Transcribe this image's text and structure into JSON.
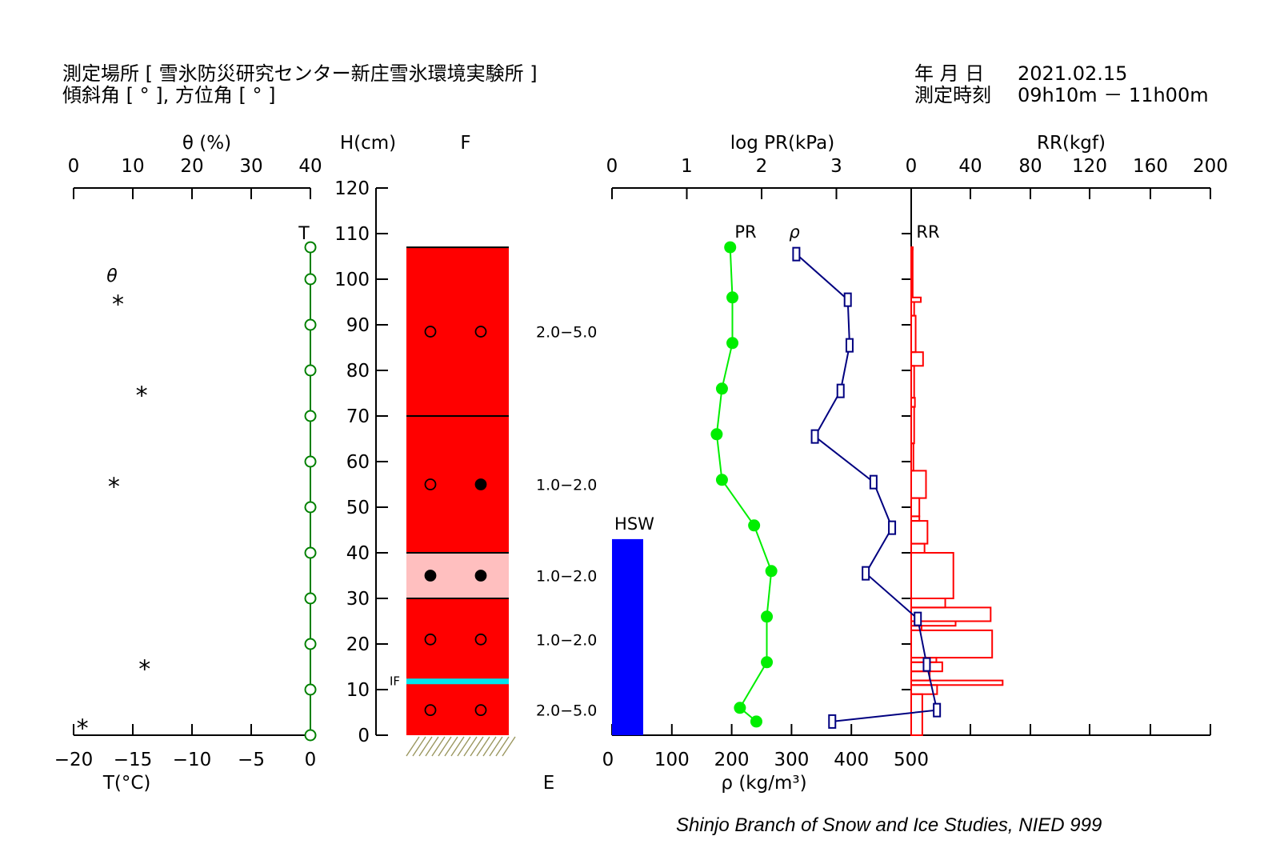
{
  "header": {
    "site_label": "測定場所 [ 雪氷防災研究センター新庄雪氷環境実験所 ]",
    "angle_label": "傾斜角 [ ° ], 方位角 [ ° ]",
    "date_label": "年 月 日",
    "date_value": "2021.02.15",
    "time_label": "測定時刻",
    "time_value": "09h10m － 11h00m"
  },
  "footer": {
    "credit": "Shinjo Branch of Snow and Ice Studies, NIED 999"
  },
  "chart_data": [
    {
      "id": "temperature_moisture",
      "type": "scatter",
      "title": "",
      "top_axis": {
        "label": "θ (%)",
        "ticks": [
          0,
          10,
          20,
          30,
          40
        ],
        "range": [
          0,
          40
        ]
      },
      "bottom_axis": {
        "label": "T(°C)",
        "ticks": [
          -20,
          -15,
          -10,
          -5,
          0
        ],
        "range": [
          -20,
          0
        ]
      },
      "y_axis": {
        "label": "H(cm)",
        "ticks": [
          0,
          10,
          20,
          30,
          40,
          50,
          60,
          70,
          80,
          90,
          100,
          110,
          120
        ],
        "range": [
          0,
          120
        ]
      },
      "series": [
        {
          "name": "T",
          "color": "#008000",
          "marker": "open-circle",
          "points": [
            [
              0,
              107
            ],
            [
              0,
              100
            ],
            [
              0,
              90
            ],
            [
              0,
              80
            ],
            [
              0,
              70
            ],
            [
              0,
              60
            ],
            [
              0,
              50
            ],
            [
              0,
              40
            ],
            [
              0,
              30
            ],
            [
              0,
              20
            ],
            [
              0,
              10
            ],
            [
              0,
              0
            ]
          ]
        },
        {
          "name": "θ",
          "color": "#000000",
          "marker": "asterisk",
          "points": [
            [
              7.5,
              95
            ],
            [
              11.5,
              75
            ],
            [
              6.8,
              55
            ],
            [
              12,
              15
            ],
            [
              1.5,
              2
            ]
          ]
        }
      ]
    },
    {
      "id": "snow_layers",
      "type": "table",
      "column_label": "F",
      "bottom_label": "E",
      "snow_top_cm": 107,
      "layers": [
        {
          "bottom": 70,
          "top": 107,
          "color": "#ff0000",
          "marks": [
            "open",
            "open"
          ],
          "mark_h": 88.5,
          "grain": "2.0−5.0",
          "grain_h": 88.5
        },
        {
          "bottom": 40,
          "top": 70,
          "color": "#ff0000",
          "marks": [
            "open",
            "filled"
          ],
          "mark_h": 55,
          "grain": "1.0−2.0",
          "grain_h": 55
        },
        {
          "bottom": 30,
          "top": 40,
          "color": "#ffbfbf",
          "marks": [
            "filled",
            "filled"
          ],
          "mark_h": 35,
          "grain": "1.0−2.0",
          "grain_h": 35
        },
        {
          "bottom": 12,
          "top": 30,
          "color": "#ff0000",
          "marks": [
            "open",
            "open"
          ],
          "mark_h": 21,
          "grain": "1.0−2.0",
          "grain_h": 21
        },
        {
          "bottom": 0,
          "top": 11.5,
          "color": "#ff0000",
          "marks": [
            "open",
            "open"
          ],
          "mark_h": 5.5,
          "grain": "2.0−5.0",
          "grain_h": 5.5
        }
      ],
      "ice_films": [
        {
          "label": "IF",
          "h": 11.8,
          "color": "#00e5ee"
        }
      ]
    },
    {
      "id": "hardness_density",
      "type": "line",
      "top_axis_pr": {
        "label": "log PR(kPa)",
        "ticks": [
          0,
          1,
          2,
          3
        ],
        "range": [
          0,
          4
        ]
      },
      "bottom_axis_rho": {
        "label": "ρ (kg/m³)",
        "ticks": [
          0,
          100,
          200,
          300,
          400,
          500
        ],
        "range": [
          0,
          500
        ]
      },
      "top_axis_rr": {
        "label": "RR(kgf)",
        "ticks": [
          0,
          40,
          80,
          120,
          160,
          200
        ],
        "range": [
          0,
          200
        ]
      },
      "hsw": {
        "label": "HSW",
        "height_cm": 43,
        "color": "#0000ff"
      },
      "series": [
        {
          "name": "PR",
          "color": "#00ee00",
          "marker": "filled-circle",
          "points": [
            [
              1.58,
              107
            ],
            [
              1.61,
              96
            ],
            [
              1.61,
              86
            ],
            [
              1.47,
              76
            ],
            [
              1.4,
              66
            ],
            [
              1.47,
              56
            ],
            [
              1.9,
              46
            ],
            [
              2.13,
              36
            ],
            [
              2.07,
              26
            ],
            [
              2.07,
              16
            ],
            [
              1.71,
              6
            ],
            [
              1.93,
              3
            ]
          ]
        },
        {
          "name": "ρ",
          "color": "#000080",
          "marker": "open-square",
          "points": [
            [
              308,
              105.5
            ],
            [
              394,
              95.5
            ],
            [
              397,
              85.5
            ],
            [
              382,
              75.5
            ],
            [
              339,
              65.5
            ],
            [
              437,
              55.5
            ],
            [
              468,
              45.5
            ],
            [
              424,
              35.5
            ],
            [
              511,
              25.5
            ],
            [
              526,
              15.5
            ],
            [
              543,
              5.5
            ],
            [
              368,
              3
            ]
          ]
        },
        {
          "name": "RR",
          "color": "#ff0000",
          "marker": "step-bars",
          "bars": [
            [
              106.5,
              107,
              1
            ],
            [
              96,
              107,
              1
            ],
            [
              95,
              96,
              6.5
            ],
            [
              92,
              95,
              2
            ],
            [
              84,
              92,
              3
            ],
            [
              81,
              84,
              8
            ],
            [
              74,
              81,
              2
            ],
            [
              72,
              74,
              2.5
            ],
            [
              64,
              72,
              2
            ],
            [
              58,
              64,
              1.5
            ],
            [
              52,
              58,
              10
            ],
            [
              48,
              52,
              5.5
            ],
            [
              47,
              48,
              5.5
            ],
            [
              42,
              47,
              11
            ],
            [
              40,
              42,
              9
            ],
            [
              30,
              40,
              28.5
            ],
            [
              28,
              30,
              23
            ],
            [
              25,
              28,
              53.5
            ],
            [
              24,
              25,
              30
            ],
            [
              23,
              24,
              7
            ],
            [
              17,
              23,
              54.5
            ],
            [
              16,
              17,
              17
            ],
            [
              14,
              16,
              21
            ],
            [
              12,
              14,
              12.5
            ],
            [
              11,
              12,
              61.5
            ],
            [
              9,
              11,
              17.5
            ],
            [
              0,
              9,
              7.5
            ]
          ]
        }
      ]
    }
  ]
}
